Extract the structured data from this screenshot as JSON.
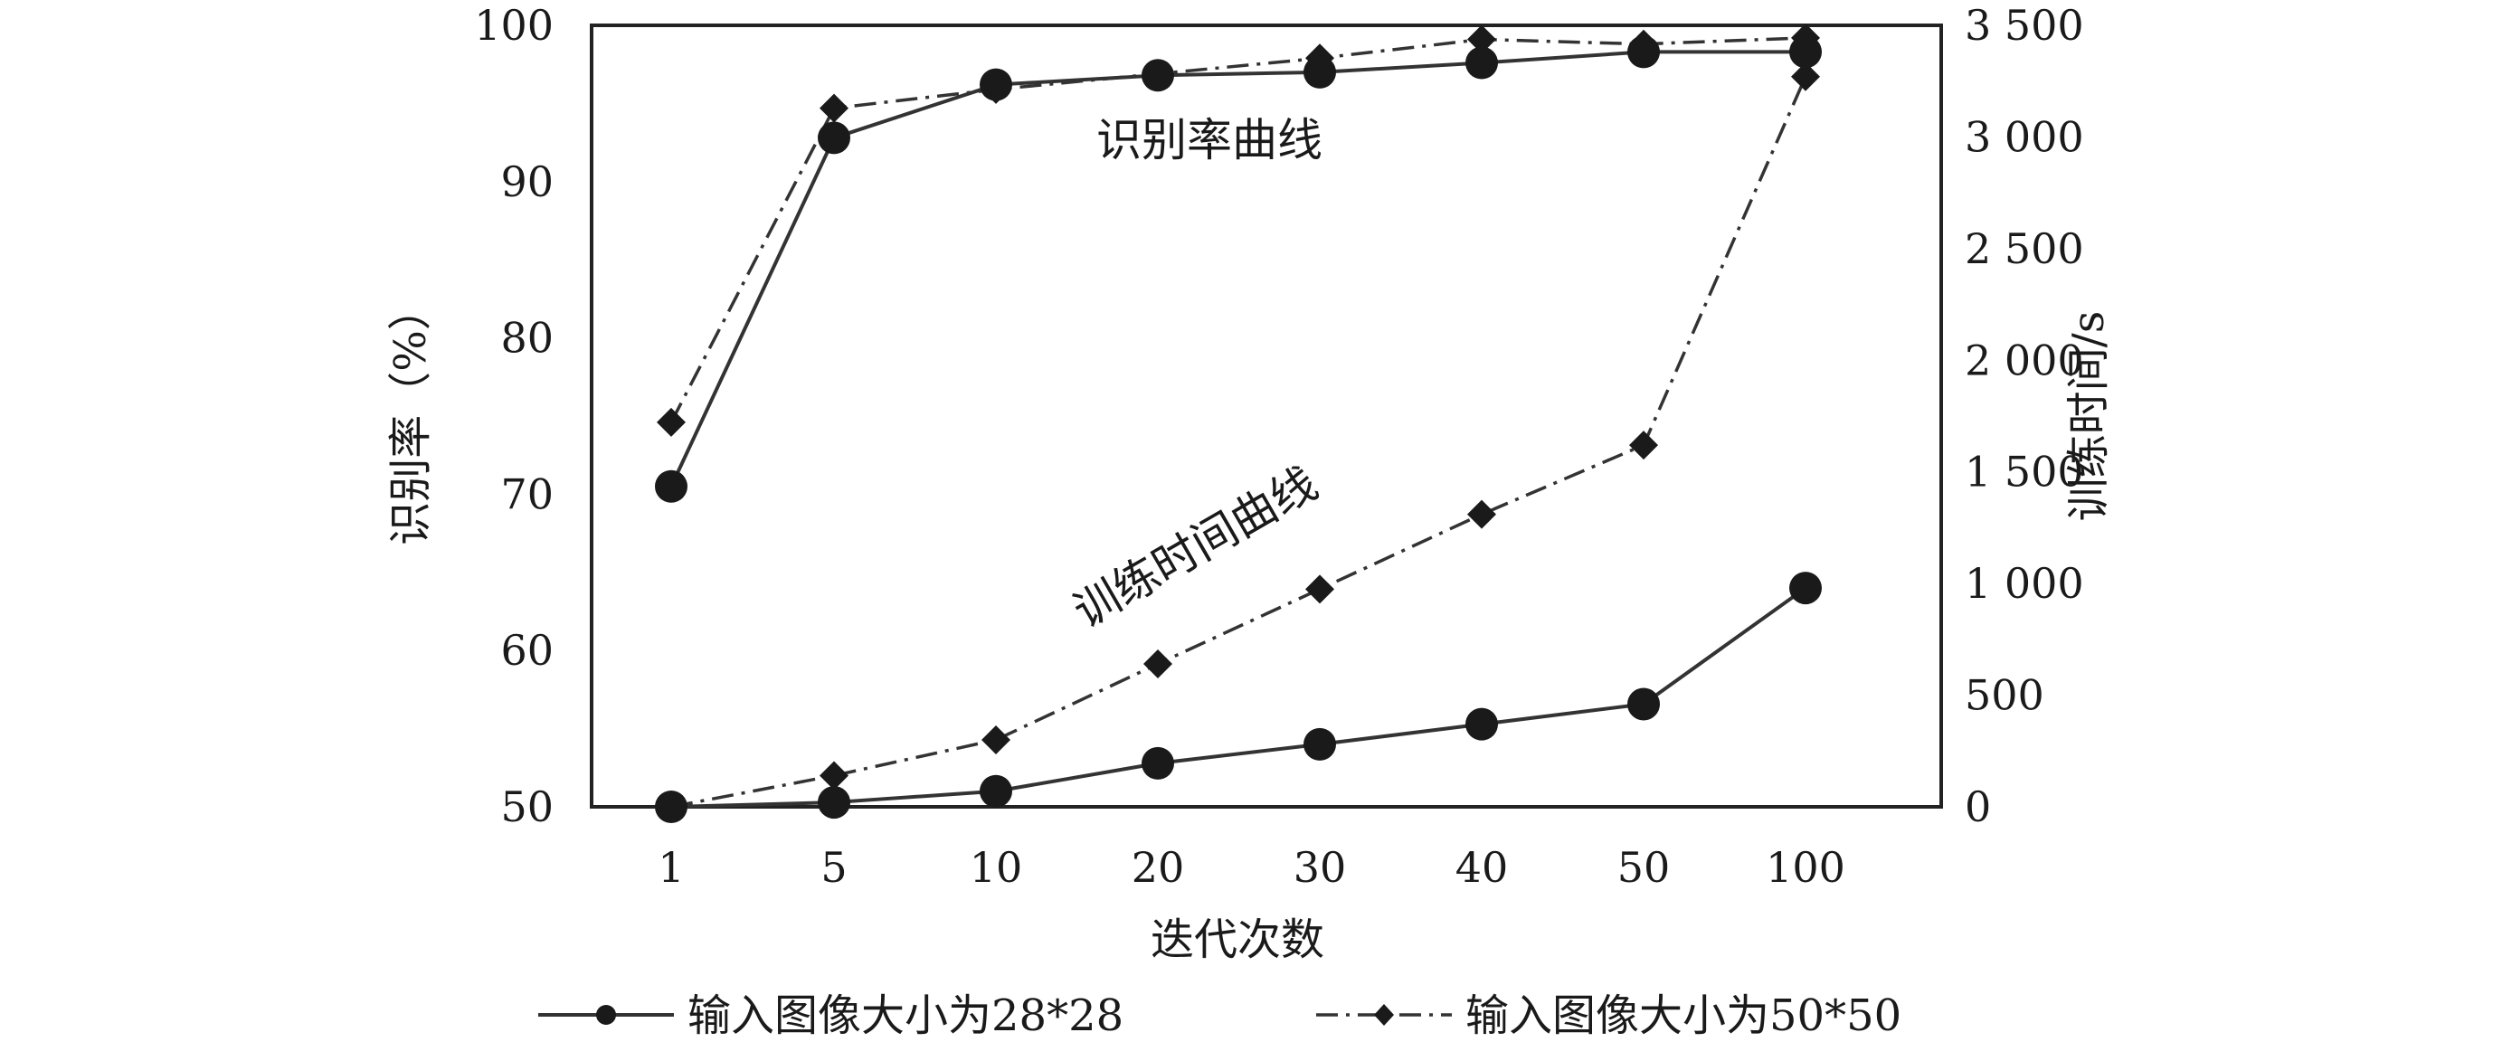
{
  "chart_data": {
    "type": "line",
    "categories": [
      "1",
      "5",
      "10",
      "20",
      "30",
      "40",
      "50",
      "100"
    ],
    "xlabel": "迭代次数",
    "ylabel_left": "识别率（%）",
    "ylabel_right": "训练时间/s",
    "ylim_left": [
      50,
      100
    ],
    "ylim_right": [
      0,
      3500
    ],
    "yticks_left": [
      "50",
      "60",
      "70",
      "80",
      "90",
      "100"
    ],
    "yticks_right": [
      "0",
      "500",
      "1 000",
      "1 500",
      "2 000",
      "2 500",
      "3 000",
      "3 500"
    ],
    "grid": false,
    "legend_position": "bottom",
    "annotations": {
      "rate": "识别率曲线",
      "time": "训练时间曲线"
    },
    "series": [
      {
        "name": "输入图像大小为28*28",
        "axis": "left",
        "metric": "rate",
        "style": "solid",
        "marker": "circle",
        "values": [
          70.5,
          92.8,
          96.2,
          96.8,
          97.0,
          97.6,
          98.3,
          98.3
        ]
      },
      {
        "name": "输入图像大小为50*50",
        "axis": "left",
        "metric": "rate",
        "style": "dash-dot",
        "marker": "diamond",
        "values": [
          74.6,
          94.7,
          95.9,
          96.9,
          97.9,
          99.1,
          98.8,
          99.2
        ]
      },
      {
        "name": "输入图像大小为28*28",
        "axis": "right",
        "metric": "time",
        "style": "solid",
        "marker": "circle",
        "values": [
          0,
          20,
          70,
          195,
          280,
          370,
          460,
          980
        ]
      },
      {
        "name": "输入图像大小为50*50",
        "axis": "right",
        "metric": "time",
        "style": "dash-dot",
        "marker": "diamond",
        "values": [
          0,
          140,
          300,
          640,
          975,
          1310,
          1620,
          3270
        ]
      }
    ]
  }
}
